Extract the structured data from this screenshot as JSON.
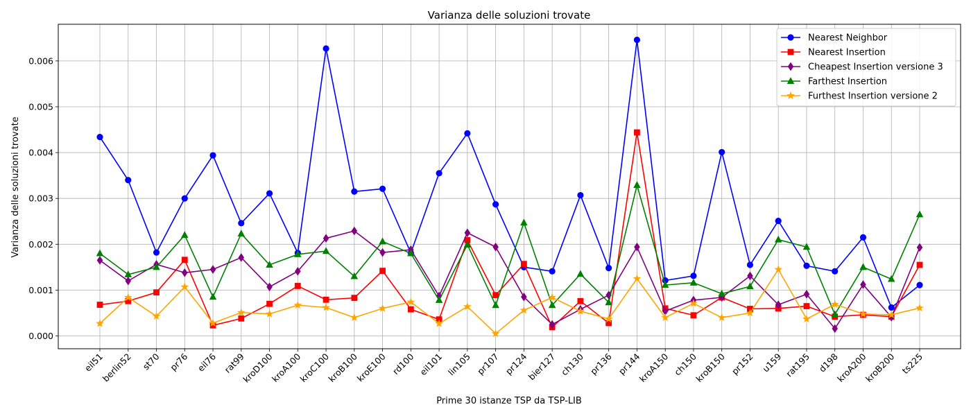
{
  "chart_data": {
    "type": "line",
    "title": "Varianza delle soluzioni trovate",
    "xlabel": "Prime 30 istanze TSP da TSP-LIB",
    "ylabel": "Varianza delle soluzioni trovate",
    "ylim": [
      -0.00028,
      0.0068
    ],
    "yticks": [
      0.0,
      0.001,
      0.002,
      0.003,
      0.004,
      0.005,
      0.006
    ],
    "ytick_labels": [
      "0.000",
      "0.001",
      "0.002",
      "0.003",
      "0.004",
      "0.005",
      "0.006"
    ],
    "grid": true,
    "legend_position": "top-right",
    "categories": [
      "eil51",
      "berlin52",
      "st70",
      "pr76",
      "eil76",
      "rat99",
      "kroD100",
      "kroA100",
      "kroC100",
      "kroB100",
      "kroE100",
      "rd100",
      "eil101",
      "lin105",
      "pr107",
      "pr124",
      "bier127",
      "ch130",
      "pr136",
      "pr144",
      "kroA150",
      "ch150",
      "kroB150",
      "pr152",
      "u159",
      "rat195",
      "d198",
      "kroA200",
      "kroB200",
      "ts225"
    ],
    "series": [
      {
        "name": "Nearest Neighbor",
        "color": "#0000ff",
        "marker": "circle",
        "values": [
          0.00434,
          0.0034,
          0.00182,
          0.003,
          0.00394,
          0.00246,
          0.00311,
          0.00181,
          0.00627,
          0.00315,
          0.00321,
          0.00181,
          0.00355,
          0.00442,
          0.00287,
          0.0015,
          0.00141,
          0.00307,
          0.00148,
          0.00646,
          0.00121,
          0.00131,
          0.00401,
          0.00155,
          0.00251,
          0.00153,
          0.00141,
          0.00215,
          0.00062,
          0.00111
        ]
      },
      {
        "name": "Nearest Insertion",
        "color": "#ff0000",
        "marker": "square",
        "values": [
          0.00068,
          0.00076,
          0.00095,
          0.00166,
          0.00023,
          0.00038,
          0.0007,
          0.00109,
          0.00079,
          0.00083,
          0.00142,
          0.00058,
          0.00036,
          0.00209,
          0.00089,
          0.00157,
          0.00019,
          0.00076,
          0.00028,
          0.00444,
          0.0006,
          0.00045,
          0.00084,
          0.00059,
          0.0006,
          0.00065,
          0.00042,
          0.00046,
          0.00042,
          0.00155
        ]
      },
      {
        "name": "Cheapest Insertion versione 3",
        "color": "#800080",
        "marker": "diamond",
        "values": [
          0.00165,
          0.0012,
          0.00156,
          0.00138,
          0.00145,
          0.00171,
          0.00107,
          0.00141,
          0.00213,
          0.00229,
          0.00182,
          0.00188,
          0.00087,
          0.00225,
          0.00194,
          0.00085,
          0.00025,
          0.00058,
          0.00089,
          0.00194,
          0.00054,
          0.00078,
          0.00084,
          0.00131,
          0.00068,
          0.00091,
          0.00016,
          0.00112,
          0.00041,
          0.00193
        ]
      },
      {
        "name": "Farthest Insertion",
        "color": "#008000",
        "marker": "triangle",
        "values": [
          0.0018,
          0.00134,
          0.0015,
          0.0022,
          0.00085,
          0.00223,
          0.00155,
          0.00178,
          0.00185,
          0.0013,
          0.00206,
          0.0018,
          0.00078,
          0.00199,
          0.00067,
          0.00247,
          0.00067,
          0.00135,
          0.00073,
          0.00329,
          0.00111,
          0.00116,
          0.00092,
          0.00108,
          0.0021,
          0.00194,
          0.00047,
          0.0015,
          0.00124,
          0.00265
        ]
      },
      {
        "name": "Furthest Insertion versione 2",
        "color": "#ffa500",
        "marker": "star",
        "values": [
          0.00027,
          0.00084,
          0.00043,
          0.00107,
          0.00028,
          0.00051,
          0.00048,
          0.00067,
          0.00062,
          0.0004,
          0.0006,
          0.00074,
          0.00027,
          0.00064,
          5e-05,
          0.00056,
          0.00084,
          0.00054,
          0.00037,
          0.00125,
          0.0004,
          0.00071,
          0.0004,
          0.0005,
          0.00145,
          0.00037,
          0.00069,
          0.00048,
          0.00046,
          0.00061
        ]
      }
    ]
  }
}
